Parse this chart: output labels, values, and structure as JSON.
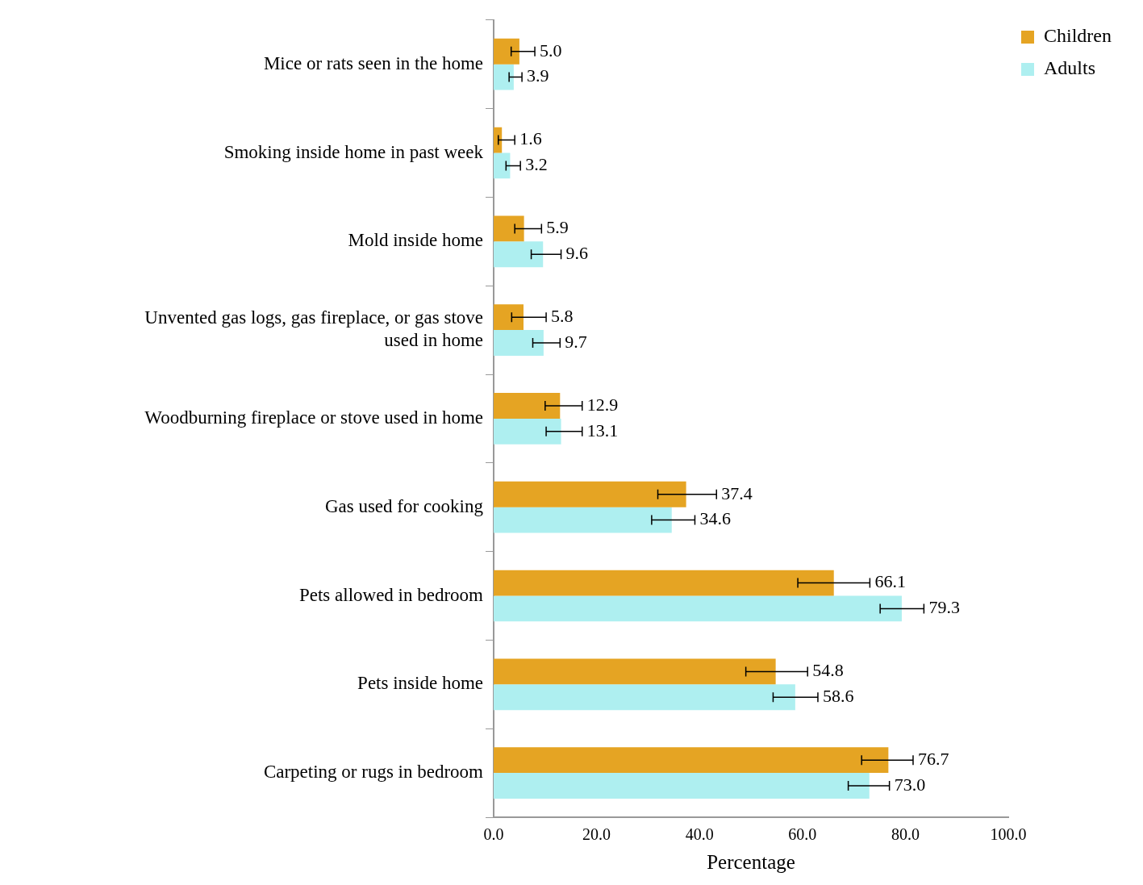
{
  "chart_data": {
    "type": "bar",
    "orientation": "horizontal",
    "xlabel": "Percentage",
    "categories": [
      "Mice or rats seen in the home",
      "Smoking inside home in past week",
      "Mold inside home",
      "Unvented gas logs, gas fireplace, or gas stove used in home",
      "Woodburning fireplace or stove used in home",
      "Gas used for cooking",
      "Pets allowed in bedroom",
      "Pets inside home",
      "Carpeting or rugs in bedroom"
    ],
    "series": [
      {
        "name": "Children",
        "color": "#e5a423",
        "values": [
          5.0,
          1.6,
          5.9,
          5.8,
          12.9,
          37.4,
          66.1,
          54.8,
          76.7
        ],
        "value_labels": [
          "5.0",
          "1.6",
          "5.9",
          "5.8",
          "12.9",
          "37.4",
          "66.1",
          "54.8",
          "76.7"
        ],
        "errors": [
          [
            3.4,
            8.0
          ],
          [
            0.9,
            4.1
          ],
          [
            4.1,
            9.3
          ],
          [
            3.5,
            10.2
          ],
          [
            10.0,
            17.2
          ],
          [
            31.9,
            43.3
          ],
          [
            59.1,
            73.1
          ],
          [
            49.0,
            61.0
          ],
          [
            71.5,
            81.5
          ]
        ]
      },
      {
        "name": "Adults",
        "color": "#aeeff0",
        "values": [
          3.9,
          3.2,
          9.6,
          9.7,
          13.1,
          34.6,
          79.3,
          58.6,
          73.0
        ],
        "value_labels": [
          "3.9",
          "3.2",
          "9.6",
          "9.7",
          "13.1",
          "34.6",
          "79.3",
          "58.6",
          "73.0"
        ],
        "errors": [
          [
            3.0,
            5.5
          ],
          [
            2.4,
            5.2
          ],
          [
            7.3,
            13.1
          ],
          [
            7.6,
            12.9
          ],
          [
            10.2,
            17.2
          ],
          [
            30.7,
            39.1
          ],
          [
            75.1,
            83.6
          ],
          [
            54.3,
            63.0
          ],
          [
            68.9,
            76.9
          ]
        ]
      }
    ],
    "xlim": [
      0,
      100
    ],
    "xticks": [
      {
        "value": 0,
        "label": "0.0"
      },
      {
        "value": 20,
        "label": "20.0"
      },
      {
        "value": 40,
        "label": "40.0"
      },
      {
        "value": 60,
        "label": "60.0"
      },
      {
        "value": 80,
        "label": "80.0"
      },
      {
        "value": 100,
        "label": "100.0"
      }
    ],
    "legend": "top right",
    "grid": false
  }
}
